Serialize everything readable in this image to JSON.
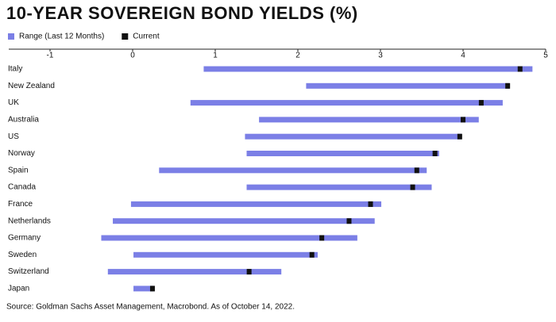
{
  "chart_data": {
    "type": "range-bar",
    "title": "10-YEAR SOVEREIGN BOND YIELDS (%)",
    "categories": [
      "Italy",
      "New Zealand",
      "UK",
      "Australia",
      "US",
      "Norway",
      "Spain",
      "Canada",
      "France",
      "Netherlands",
      "Germany",
      "Sweden",
      "Switzerland",
      "Japan"
    ],
    "series": [
      {
        "name": "Range (Last 12 Months)",
        "color": "#7b7fe6",
        "values": [
          [
            0.86,
            4.84
          ],
          [
            2.1,
            4.56
          ],
          [
            0.7,
            4.48
          ],
          [
            1.53,
            4.19
          ],
          [
            1.36,
            3.98
          ],
          [
            1.38,
            3.71
          ],
          [
            0.32,
            3.56
          ],
          [
            1.38,
            3.62
          ],
          [
            -0.02,
            3.01
          ],
          [
            -0.24,
            2.93
          ],
          [
            -0.38,
            2.72
          ],
          [
            0.01,
            2.24
          ],
          [
            -0.3,
            1.8
          ],
          [
            0.01,
            0.25
          ]
        ]
      },
      {
        "name": "Current",
        "color": "#111111",
        "values": [
          4.69,
          4.54,
          4.22,
          4.0,
          3.96,
          3.66,
          3.44,
          3.39,
          2.88,
          2.62,
          2.29,
          2.17,
          1.41,
          0.24
        ]
      }
    ],
    "xlim": [
      -1.5,
      5
    ],
    "xticks": [
      -1,
      0,
      1,
      2,
      3,
      4,
      5
    ],
    "source": "Source: Goldman Sachs Asset Management, Macrobond. As of  October 14, 2022."
  }
}
